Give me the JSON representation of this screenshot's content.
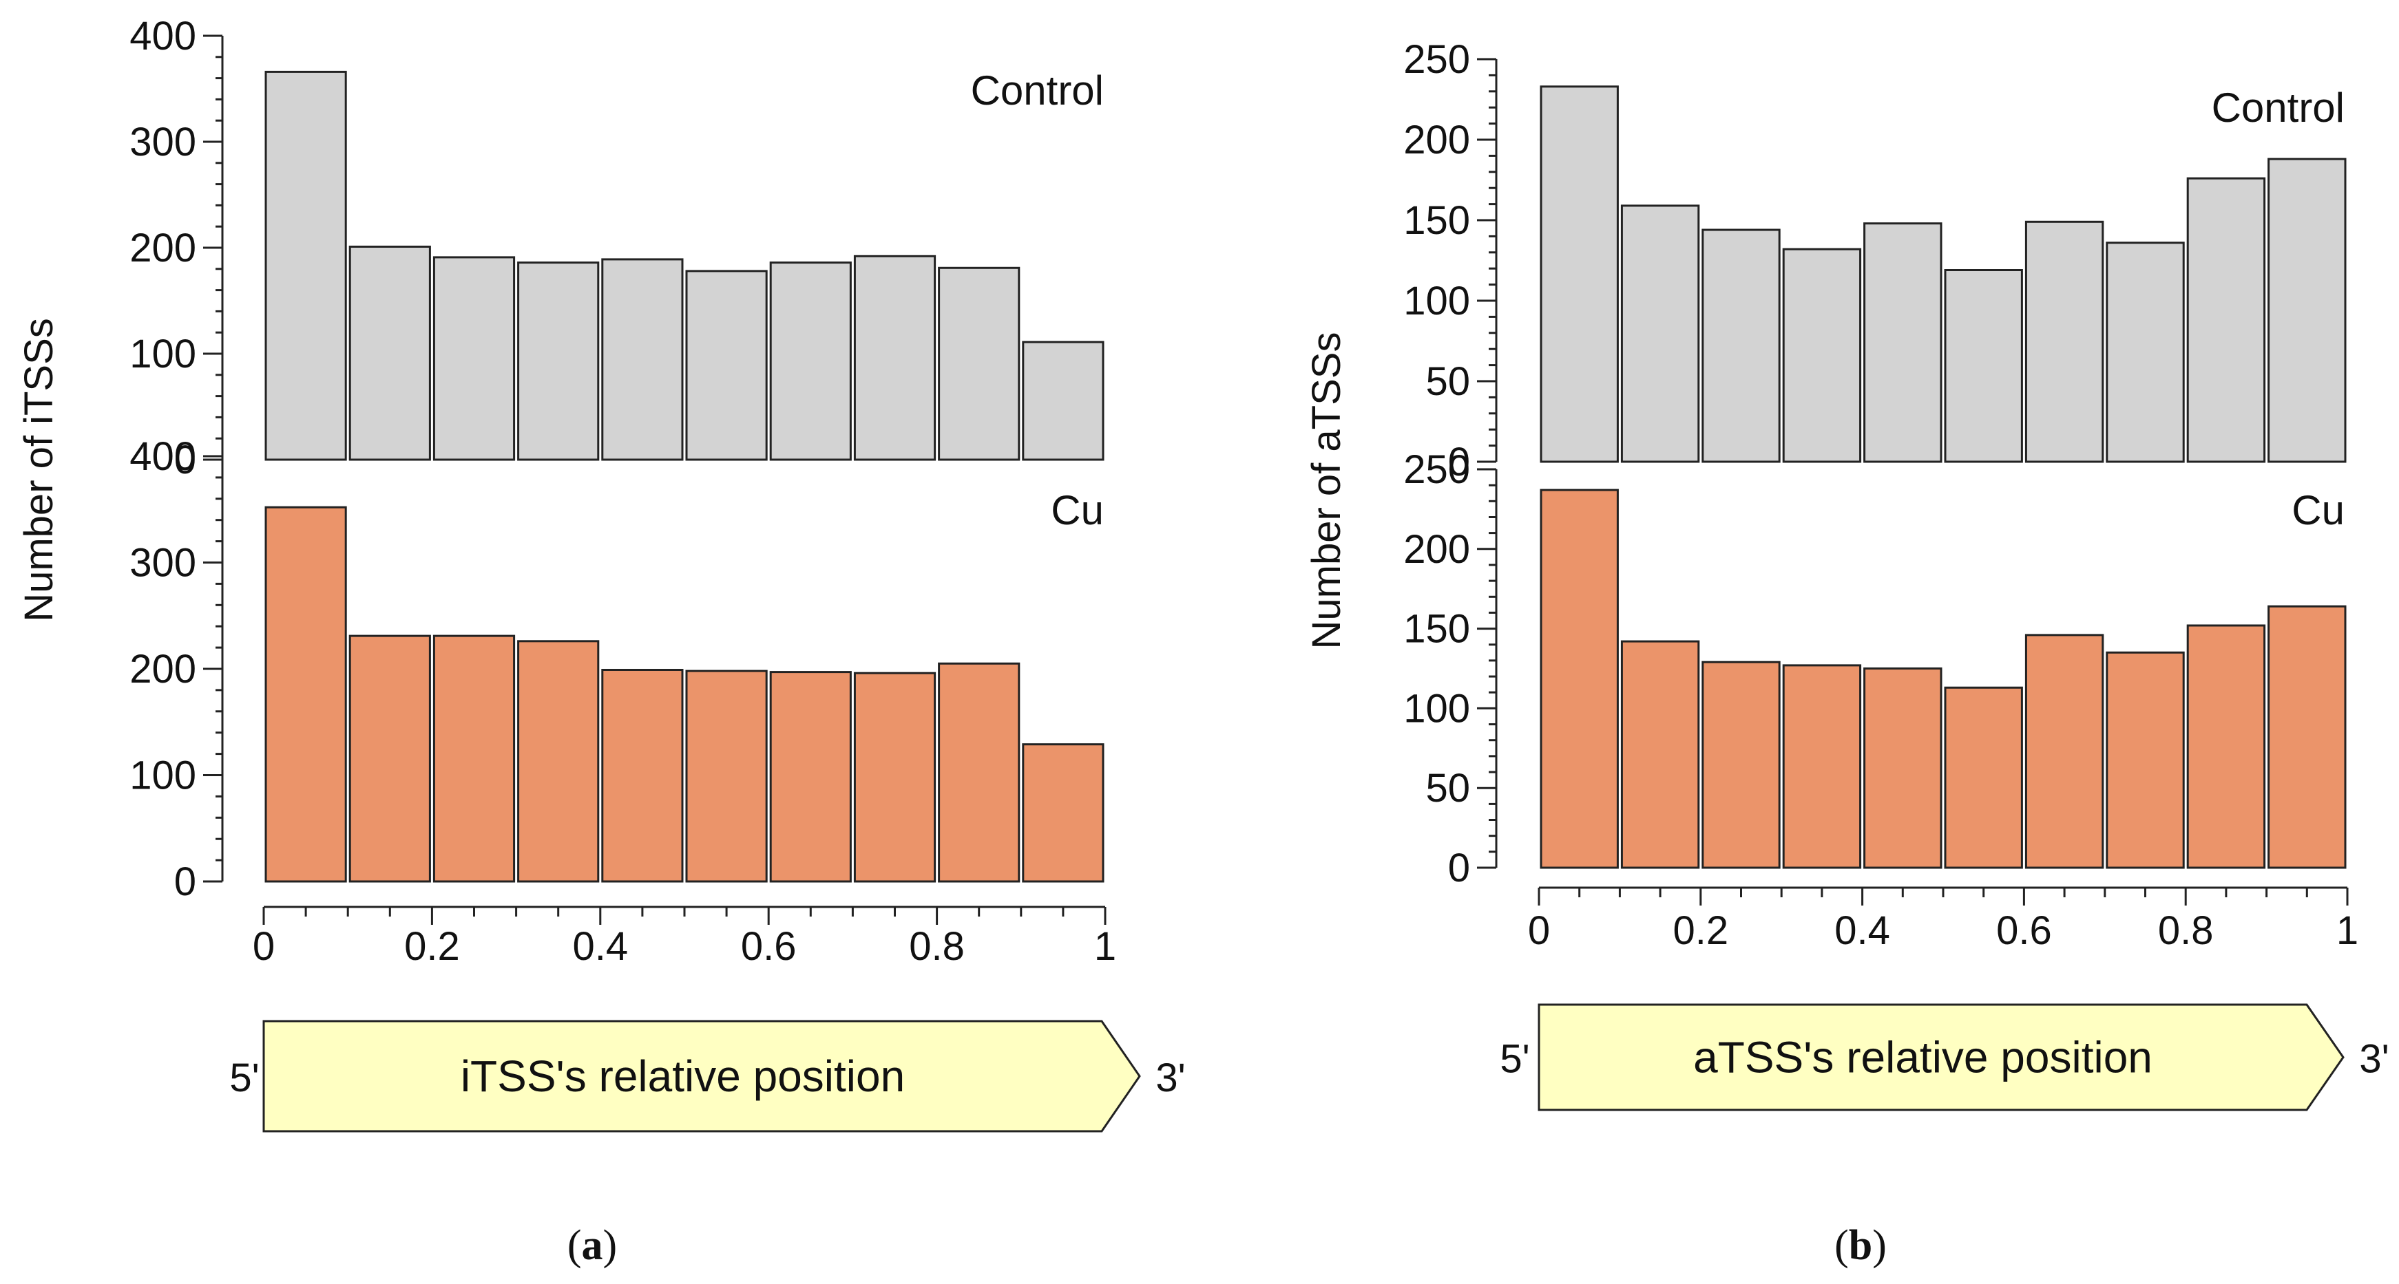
{
  "colors": {
    "control_fill": "#d3d3d3",
    "cu_fill": "#eb946a",
    "bar_stroke": "#222222",
    "axis": "#222222",
    "arrow_fill": "#ffffc2"
  },
  "chart_data": [
    {
      "type": "bar",
      "id": "a",
      "caption": "a",
      "ylabel": "Number of iTSSs",
      "xlabel": "iTSS's relative position",
      "x_start_label": "5'",
      "x_end_label": "3'",
      "bin_edges": [
        0,
        0.1,
        0.2,
        0.3,
        0.4,
        0.5,
        0.6,
        0.7,
        0.8,
        0.9,
        1.0
      ],
      "x_ticks": [
        "0",
        "0.2",
        "0.4",
        "0.6",
        "0.8",
        "1"
      ],
      "y_ticks": [
        "0",
        "100",
        "200",
        "300",
        "400"
      ],
      "ylim": [
        0,
        400
      ],
      "series": [
        {
          "name": "Control",
          "values": [
            366,
            201,
            191,
            186,
            189,
            178,
            186,
            192,
            181,
            111
          ]
        },
        {
          "name": "Cu",
          "values": [
            352,
            231,
            231,
            226,
            199,
            198,
            197,
            196,
            205,
            129
          ]
        }
      ]
    },
    {
      "type": "bar",
      "id": "b",
      "caption": "b",
      "ylabel": "Number of aTSSs",
      "xlabel": "aTSS's relative position",
      "x_start_label": "5'",
      "x_end_label": "3'",
      "bin_edges": [
        0,
        0.1,
        0.2,
        0.3,
        0.4,
        0.5,
        0.6,
        0.7,
        0.8,
        0.9,
        1.0
      ],
      "x_ticks": [
        "0",
        "0.2",
        "0.4",
        "0.6",
        "0.8",
        "1"
      ],
      "y_ticks": [
        "0",
        "50",
        "100",
        "150",
        "200",
        "250"
      ],
      "ylim": [
        0,
        250
      ],
      "series": [
        {
          "name": "Control",
          "values": [
            233,
            159,
            144,
            132,
            148,
            119,
            149,
            136,
            176,
            188
          ]
        },
        {
          "name": "Cu",
          "values": [
            237,
            142,
            129,
            127,
            125,
            113,
            146,
            135,
            152,
            164
          ]
        }
      ]
    }
  ]
}
